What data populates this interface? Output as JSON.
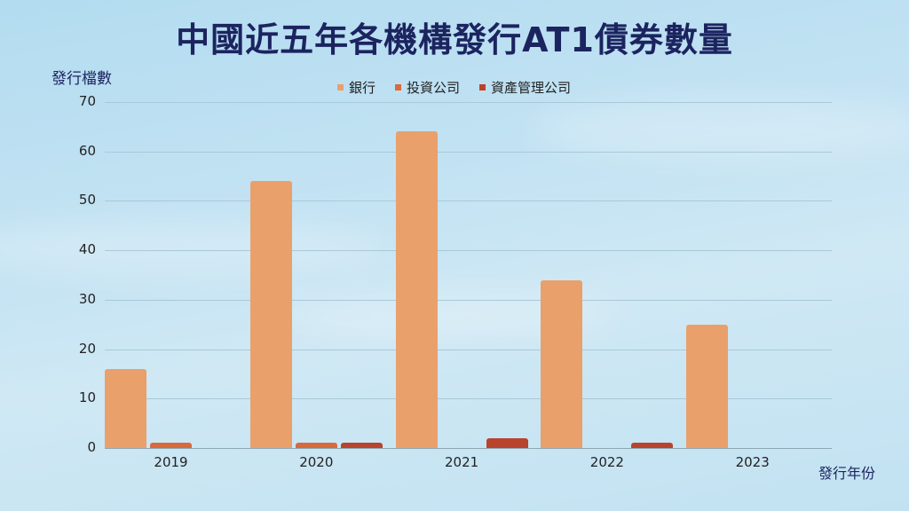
{
  "title": "中國近五年各機構發行AT1債券數量",
  "chart_data": {
    "type": "bar",
    "title": "中國近五年各機構發行AT1債券數量",
    "xlabel": "發行年份",
    "ylabel": "發行檔數",
    "categories": [
      "2019",
      "2020",
      "2021",
      "2022",
      "2023"
    ],
    "series": [
      {
        "name": "銀行",
        "color": "#e9a06b",
        "values": [
          16,
          54,
          64,
          34,
          25
        ]
      },
      {
        "name": "投資公司",
        "color": "#d96a3c",
        "values": [
          1,
          1,
          0,
          0,
          0
        ]
      },
      {
        "name": "資產管理公司",
        "color": "#b9432c",
        "values": [
          0,
          1,
          2,
          1,
          0
        ]
      }
    ],
    "ylim": [
      0,
      70
    ],
    "yticks": [
      0,
      10,
      20,
      30,
      40,
      50,
      60,
      70
    ],
    "grid": true,
    "legend_position": "top"
  }
}
